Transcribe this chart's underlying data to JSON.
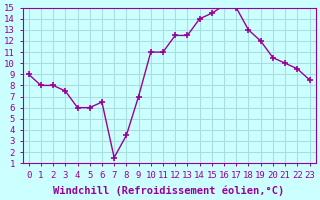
{
  "x": [
    0,
    1,
    2,
    3,
    4,
    5,
    6,
    7,
    8,
    9,
    10,
    11,
    12,
    13,
    14,
    15,
    16,
    17,
    18,
    19,
    20,
    21,
    22,
    23
  ],
  "y": [
    9.0,
    8.0,
    8.0,
    7.5,
    6.0,
    6.0,
    6.5,
    1.5,
    3.5,
    7.0,
    11.0,
    11.0,
    12.5,
    12.5,
    14.0,
    14.5,
    15.2,
    15.0,
    13.0,
    12.0,
    10.5,
    10.0,
    9.5,
    8.5
  ],
  "line_color": "#990099",
  "marker": "+",
  "marker_size": 5,
  "bg_color": "#ccffff",
  "grid_color": "#aadddd",
  "xlabel": "Windchill (Refroidissement éolien,°C)",
  "xlim": [
    -0.5,
    23.5
  ],
  "ylim": [
    1,
    15
  ],
  "yticks": [
    1,
    2,
    3,
    4,
    5,
    6,
    7,
    8,
    9,
    10,
    11,
    12,
    13,
    14,
    15
  ],
  "xticks": [
    0,
    1,
    2,
    3,
    4,
    5,
    6,
    7,
    8,
    9,
    10,
    11,
    12,
    13,
    14,
    15,
    16,
    17,
    18,
    19,
    20,
    21,
    22,
    23
  ],
  "title_color": "#990099",
  "axis_color": "#990099",
  "label_fontsize": 7.5,
  "tick_fontsize": 6.5
}
